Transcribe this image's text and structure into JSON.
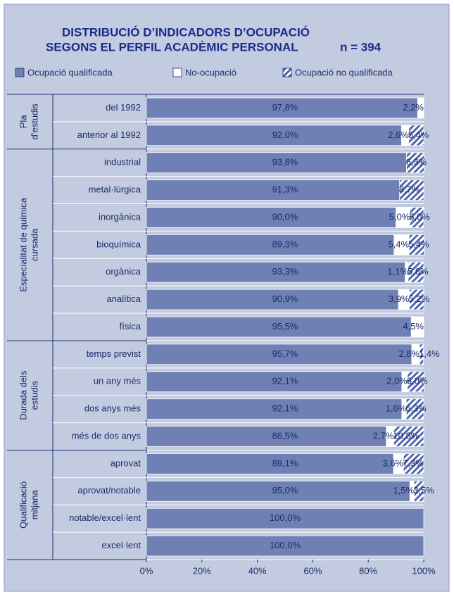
{
  "chart_data": {
    "type": "stacked_barh",
    "title": [
      "DISTRIBUCIÓ D’INDICADORS D’OCUPACIÓ",
      "SEGONS EL PERFIL ACADÈMIC PERSONAL"
    ],
    "subtitle": "n = 394",
    "categories": [
      "del 1992",
      "anterior al 1992",
      "industrial",
      "metal·lúrgica",
      "inorgànica",
      "bioquímica",
      "orgànica",
      "analítica",
      "física",
      "temps previst",
      "un any més",
      "dos anys més",
      "més de dos anys",
      "aprovat",
      "aprovat/notable",
      "notable/excel·lent",
      "excel·lent"
    ],
    "groups": [
      {
        "lines": [
          "Pla",
          "d’estudis"
        ],
        "count": 2
      },
      {
        "lines": [
          "Especialitat de química",
          "cursada"
        ],
        "count": 7
      },
      {
        "lines": [
          "Durada dels",
          "estudis"
        ],
        "count": 4
      },
      {
        "lines": [
          "Qualificació",
          "mitjana"
        ],
        "count": 4
      }
    ],
    "series": [
      {
        "name": "Ocupació qualificada",
        "color": "#6e80b4",
        "hatch": false,
        "values": [
          97.8,
          92.0,
          93.8,
          91.3,
          90.0,
          89.3,
          93.3,
          90.9,
          95.5,
          95.7,
          92.1,
          92.1,
          86.5,
          89.1,
          95.0,
          100.0,
          100.0
        ],
        "value_labels": [
          "97,8%",
          "92,0%",
          "93,8%",
          "91,3%",
          "90,0%",
          "89,3%",
          "93,3%",
          "90,9%",
          "95,5%",
          "95,7%",
          "92,1%",
          "92,1%",
          "86,5%",
          "89,1%",
          "95,0%",
          "100,0%",
          "100,0%"
        ]
      },
      {
        "name": "No-ocupació",
        "color": "#ffffff",
        "hatch": false,
        "values": [
          2.2,
          2.6,
          null,
          null,
          5.0,
          5.4,
          1.1,
          3.9,
          4.5,
          2.8,
          2.0,
          1.6,
          2.7,
          3.6,
          1.5,
          null,
          null
        ],
        "value_labels": [
          "2,2%",
          "2,6%",
          null,
          null,
          "5,0%",
          "5,4%",
          "1,1%",
          "3,9%",
          "4,5%",
          "2,8%",
          "2,0%",
          "1,6%",
          "2,7%",
          "3,6%",
          "1,5%",
          null,
          null
        ]
      },
      {
        "name": "Ocupació no qualificada",
        "color": "#4f67ad",
        "hatch": true,
        "values": [
          null,
          5.4,
          6.3,
          8.7,
          5.0,
          5.4,
          5.6,
          5.2,
          null,
          1.4,
          6.0,
          6.3,
          10.8,
          7.3,
          3.5,
          null,
          null
        ],
        "value_labels": [
          null,
          "5,4%",
          "6,3%",
          "8,7%",
          "5,0%",
          "5,4%",
          "5,6%",
          "5,2%",
          null,
          "1,4%",
          "6,0%",
          "6,3%",
          "10,8%",
          "7,3%",
          "3,5%",
          null,
          null
        ]
      }
    ],
    "xlim": [
      0,
      100
    ],
    "xticks": [
      {
        "value": 0,
        "label": "0%"
      },
      {
        "value": 20,
        "label": "20%"
      },
      {
        "value": 40,
        "label": "40%"
      },
      {
        "value": 60,
        "label": "60%"
      },
      {
        "value": 80,
        "label": "80%"
      },
      {
        "value": 100,
        "label": "100%"
      }
    ]
  }
}
